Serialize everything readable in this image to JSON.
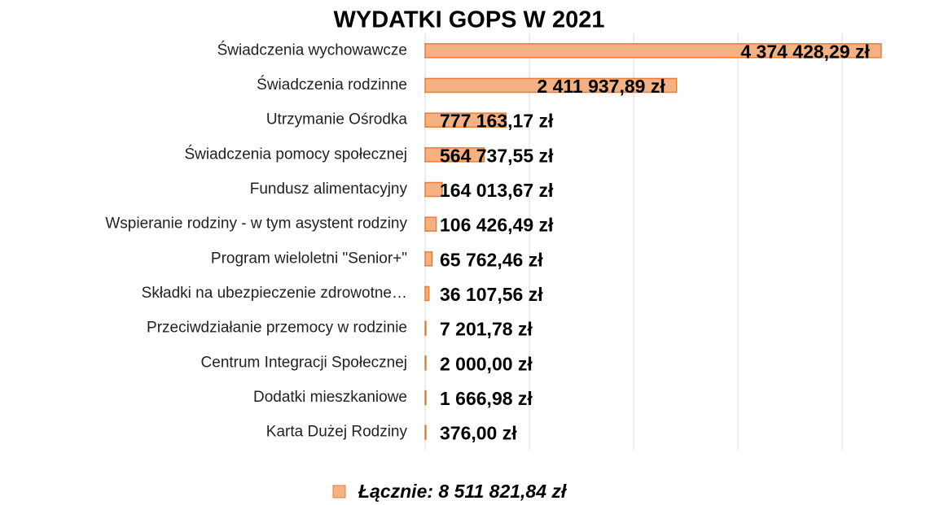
{
  "chart_data": {
    "type": "bar",
    "orientation": "horizontal",
    "title": "WYDATKI GOPS W 2021",
    "categories": [
      "Świadczenia wychowawcze",
      "Świadczenia rodzinne",
      "Utrzymanie Ośrodka",
      "Świadczenia pomocy społecznej",
      "Fundusz alimentacyjny",
      "Wspieranie rodziny - w tym asystent rodziny",
      "Program wieloletni \"Senior+\"",
      "Składki na ubezpieczenie zdrowotne…",
      "Przeciwdziałanie przemocy w rodzinie",
      "Centrum Integracji Społecznej",
      "Dodatki mieszkaniowe",
      "Karta Dużej Rodziny"
    ],
    "series": [
      {
        "name": "Łącznie: 8 511 821,84 zł",
        "color": "#f4b183",
        "edge_color": "#ed7d31",
        "values": [
          4374428.29,
          2411937.89,
          777163.17,
          564737.55,
          164013.67,
          106426.49,
          65762.46,
          36107.56,
          7201.78,
          2000.0,
          1666.98,
          376.0
        ],
        "value_labels": [
          "4 374 428,29 zł",
          "2 411 937,89 zł",
          "777 163,17 zł",
          "564 737,55 zł",
          "164 013,67 zł",
          "106 426,49 zł",
          "65 762,46 zł",
          "36 107,56 zł",
          "7 201,78 zł",
          "2 000,00 zł",
          "1 666,98 zł",
          "376,00 zł"
        ]
      }
    ],
    "xlim": [
      0,
      4500000
    ],
    "xticks": [
      0,
      1000000,
      2000000,
      3000000,
      4000000
    ],
    "grid": true,
    "legend": "bottom"
  }
}
